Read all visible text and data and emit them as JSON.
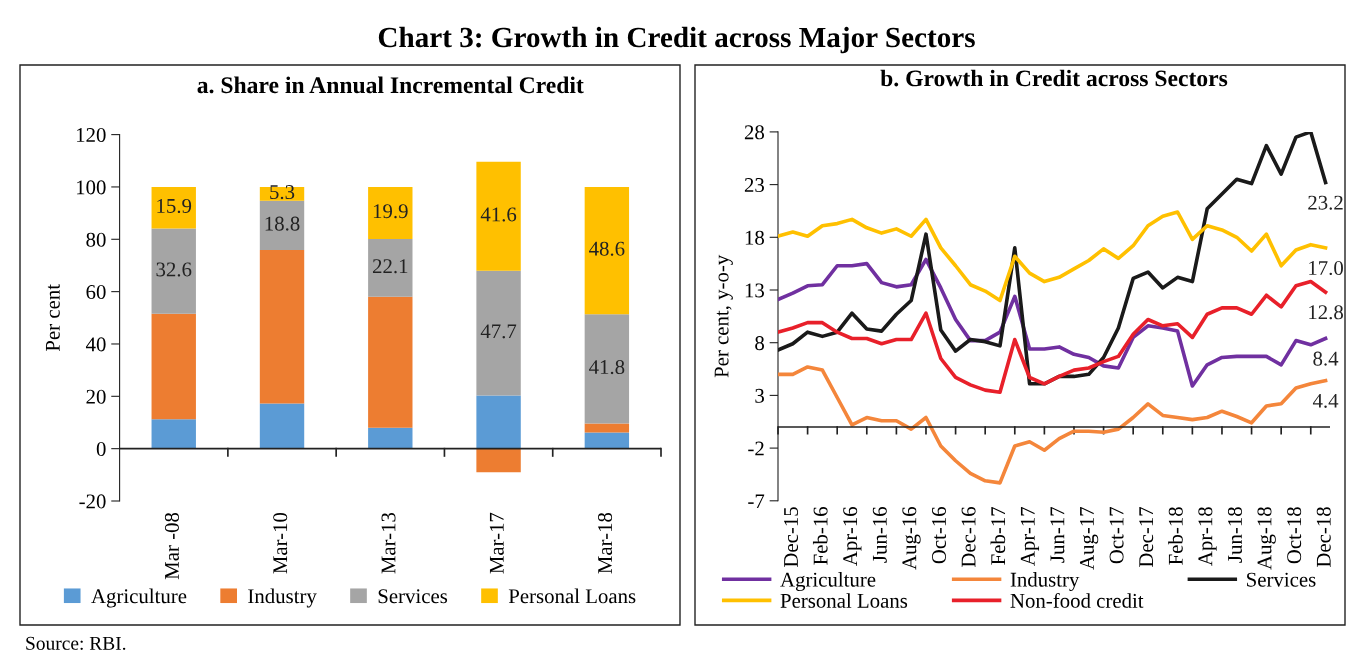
{
  "chart_data": [
    {
      "type": "bar",
      "stacked": true,
      "title": "Chart 3: Growth in Credit across Major Sectors",
      "subtitle": "a. Share in Annual Incremental Credit",
      "ylabel": "Per cent",
      "categories": [
        "Mar -08",
        "Mar-10",
        "Mar-13",
        "Mar-17",
        "Mar-18"
      ],
      "series": [
        {
          "name": "Agriculture",
          "color": "#5b9bd5",
          "values": [
            11.2,
            17.3,
            8.0,
            20.3,
            6.2
          ]
        },
        {
          "name": "Industry",
          "color": "#ed7d31",
          "values": [
            40.3,
            58.6,
            50.0,
            -9.0,
            3.4
          ]
        },
        {
          "name": "Services",
          "color": "#a5a5a5",
          "values": [
            32.6,
            18.8,
            22.1,
            47.7,
            41.8
          ],
          "value_labels": [
            "32.6",
            "18.8",
            "22.1",
            "47.7",
            "41.8"
          ]
        },
        {
          "name": "Personal Loans",
          "color": "#ffc000",
          "values": [
            15.9,
            5.3,
            19.9,
            41.6,
            48.6
          ],
          "value_labels": [
            "15.9",
            "5.3",
            "19.9",
            "41.6",
            "48.6"
          ]
        }
      ],
      "ylim": [
        -20,
        120
      ],
      "yticks": [
        -20,
        0,
        20,
        40,
        60,
        80,
        100,
        120
      ],
      "legend": "bottom",
      "annotations": [
        "Source: RBI."
      ]
    },
    {
      "type": "line",
      "title": "b. Growth in Credit across Sectors",
      "ylabel": "Per cent, y-o-y",
      "categories": [
        null,
        "Dec-15",
        null,
        "Feb-16",
        null,
        "Apr-16",
        null,
        "Jun-16",
        null,
        "Aug-16",
        null,
        "Oct-16",
        null,
        "Dec-16",
        null,
        "Feb-17",
        null,
        "Apr-17",
        null,
        "Jun-17",
        null,
        "Aug-17",
        null,
        "Oct-17",
        null,
        "Dec-17",
        null,
        "Feb-18",
        null,
        "Apr-18",
        null,
        "Jun-18",
        null,
        "Aug-18",
        null,
        "Oct-18",
        null,
        "Dec-18"
      ],
      "series": [
        {
          "name": "Agriculture",
          "color": "#7030a0",
          "values": [
            12.1,
            12.7,
            13.4,
            13.5,
            15.3,
            15.3,
            15.5,
            13.7,
            13.3,
            13.5,
            15.9,
            13.2,
            10.2,
            8.2,
            8.2,
            9.0,
            12.4,
            7.4,
            7.4,
            7.6,
            6.9,
            6.6,
            5.8,
            5.6,
            8.5,
            9.6,
            9.4,
            9.1,
            3.9,
            5.9,
            6.6,
            6.7,
            6.7,
            6.7,
            5.9,
            8.2,
            7.8,
            8.4
          ],
          "value_labels": [
            null,
            null,
            null,
            null,
            null,
            null,
            null,
            null,
            null,
            null,
            null,
            null,
            null,
            null,
            null,
            null,
            null,
            null,
            null,
            null,
            null,
            null,
            null,
            null,
            null,
            null,
            null,
            null,
            null,
            null,
            null,
            null,
            null,
            null,
            null,
            null,
            null,
            "8.4"
          ]
        },
        {
          "name": "Industry",
          "color": "#f4863b",
          "values": [
            5.0,
            5.0,
            5.7,
            5.4,
            2.8,
            0.2,
            0.9,
            0.6,
            0.6,
            -0.2,
            0.9,
            -1.8,
            -3.2,
            -4.4,
            -5.1,
            -5.3,
            -1.8,
            -1.4,
            -2.2,
            -1.1,
            -0.4,
            -0.4,
            -0.5,
            -0.2,
            0.9,
            2.2,
            1.1,
            0.9,
            0.7,
            0.9,
            1.5,
            1.0,
            0.4,
            2.0,
            2.2,
            3.7,
            4.1,
            4.4
          ],
          "value_labels": [
            null,
            null,
            null,
            null,
            null,
            null,
            null,
            null,
            null,
            null,
            null,
            null,
            null,
            null,
            null,
            null,
            null,
            null,
            null,
            null,
            null,
            null,
            null,
            null,
            null,
            null,
            null,
            null,
            null,
            null,
            null,
            null,
            null,
            null,
            null,
            null,
            null,
            "4.4"
          ]
        },
        {
          "name": "Services",
          "color": "#1a1a1a",
          "values": [
            7.3,
            7.9,
            9.0,
            8.6,
            9.0,
            10.8,
            9.3,
            9.1,
            10.7,
            12.0,
            18.3,
            9.2,
            7.2,
            8.3,
            8.1,
            7.7,
            17.0,
            4.1,
            4.1,
            4.8,
            4.8,
            5.0,
            6.6,
            9.4,
            14.1,
            14.7,
            13.2,
            14.2,
            13.8,
            20.7,
            22.1,
            23.5,
            23.1,
            26.7,
            24.0,
            27.5,
            28.0,
            23.2
          ],
          "value_labels": [
            null,
            null,
            null,
            null,
            null,
            null,
            null,
            null,
            null,
            null,
            null,
            null,
            null,
            null,
            null,
            null,
            null,
            null,
            null,
            null,
            null,
            null,
            null,
            null,
            null,
            null,
            null,
            null,
            null,
            null,
            null,
            null,
            null,
            null,
            null,
            null,
            null,
            "23.2"
          ]
        },
        {
          "name": "Personal Loans",
          "color": "#ffc000",
          "values": [
            18.1,
            18.5,
            18.1,
            19.1,
            19.3,
            19.7,
            18.9,
            18.4,
            18.8,
            18.1,
            19.7,
            17.0,
            15.3,
            13.5,
            12.9,
            12.0,
            16.2,
            14.6,
            13.8,
            14.2,
            15.0,
            15.8,
            16.9,
            16.0,
            17.2,
            19.1,
            20.0,
            20.4,
            17.8,
            19.1,
            18.7,
            18.0,
            16.7,
            18.3,
            15.3,
            16.8,
            17.3,
            17.0
          ],
          "value_labels": [
            null,
            null,
            null,
            null,
            null,
            null,
            null,
            null,
            null,
            null,
            null,
            null,
            null,
            null,
            null,
            null,
            null,
            null,
            null,
            null,
            null,
            null,
            null,
            null,
            null,
            null,
            null,
            null,
            null,
            null,
            null,
            null,
            null,
            null,
            null,
            null,
            null,
            "17.0"
          ]
        },
        {
          "name": "Non-food credit",
          "color": "#e8202a",
          "values": [
            9.0,
            9.4,
            9.9,
            9.9,
            9.0,
            8.4,
            8.4,
            7.9,
            8.3,
            8.3,
            10.8,
            6.5,
            4.7,
            4.0,
            3.5,
            3.3,
            8.3,
            4.7,
            4.1,
            4.8,
            5.4,
            5.6,
            6.2,
            6.7,
            8.8,
            10.2,
            9.6,
            9.8,
            8.5,
            10.7,
            11.3,
            11.3,
            10.7,
            12.5,
            11.4,
            13.4,
            13.8,
            12.8
          ],
          "value_labels": [
            null,
            null,
            null,
            null,
            null,
            null,
            null,
            null,
            null,
            null,
            null,
            null,
            null,
            null,
            null,
            null,
            null,
            null,
            null,
            null,
            null,
            null,
            null,
            null,
            null,
            null,
            null,
            null,
            null,
            null,
            null,
            null,
            null,
            null,
            null,
            null,
            null,
            "12.8"
          ]
        }
      ],
      "ylim": [
        -7,
        28
      ],
      "yticks": [
        -7,
        -2,
        3,
        8,
        13,
        18,
        23,
        28
      ],
      "legend": "bottom"
    }
  ]
}
